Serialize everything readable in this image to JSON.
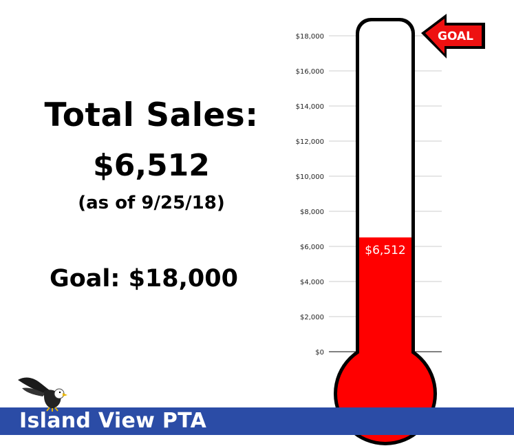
{
  "header": {
    "total_label": "Total Sales:",
    "total_value": "$6,512",
    "as_of": "(as of 9/25/18)",
    "goal_text": "Goal: $18,000"
  },
  "footer": {
    "org_name": "Island View PTA",
    "bar_color": "#2b4ca6"
  },
  "goal_badge": "GOAL",
  "colors": {
    "fill": "#ff0000",
    "outline": "#000000",
    "grid": "#cccccc"
  },
  "icons": {
    "mascot": "eagle-icon",
    "goal_pointer": "left-arrow-icon"
  },
  "chart_data": {
    "type": "bar",
    "categories": [
      "Total Sales"
    ],
    "values": [
      6512
    ],
    "goal": 18000,
    "fill_label": "$6,512",
    "ylim": [
      0,
      18000
    ],
    "yticks": [
      0,
      2000,
      4000,
      6000,
      8000,
      10000,
      12000,
      14000,
      16000,
      18000
    ],
    "ytick_labels": [
      "$0",
      "$2,000",
      "$4,000",
      "$6,000",
      "$8,000",
      "$10,000",
      "$12,000",
      "$14,000",
      "$16,000",
      "$18,000"
    ],
    "grid": true
  }
}
